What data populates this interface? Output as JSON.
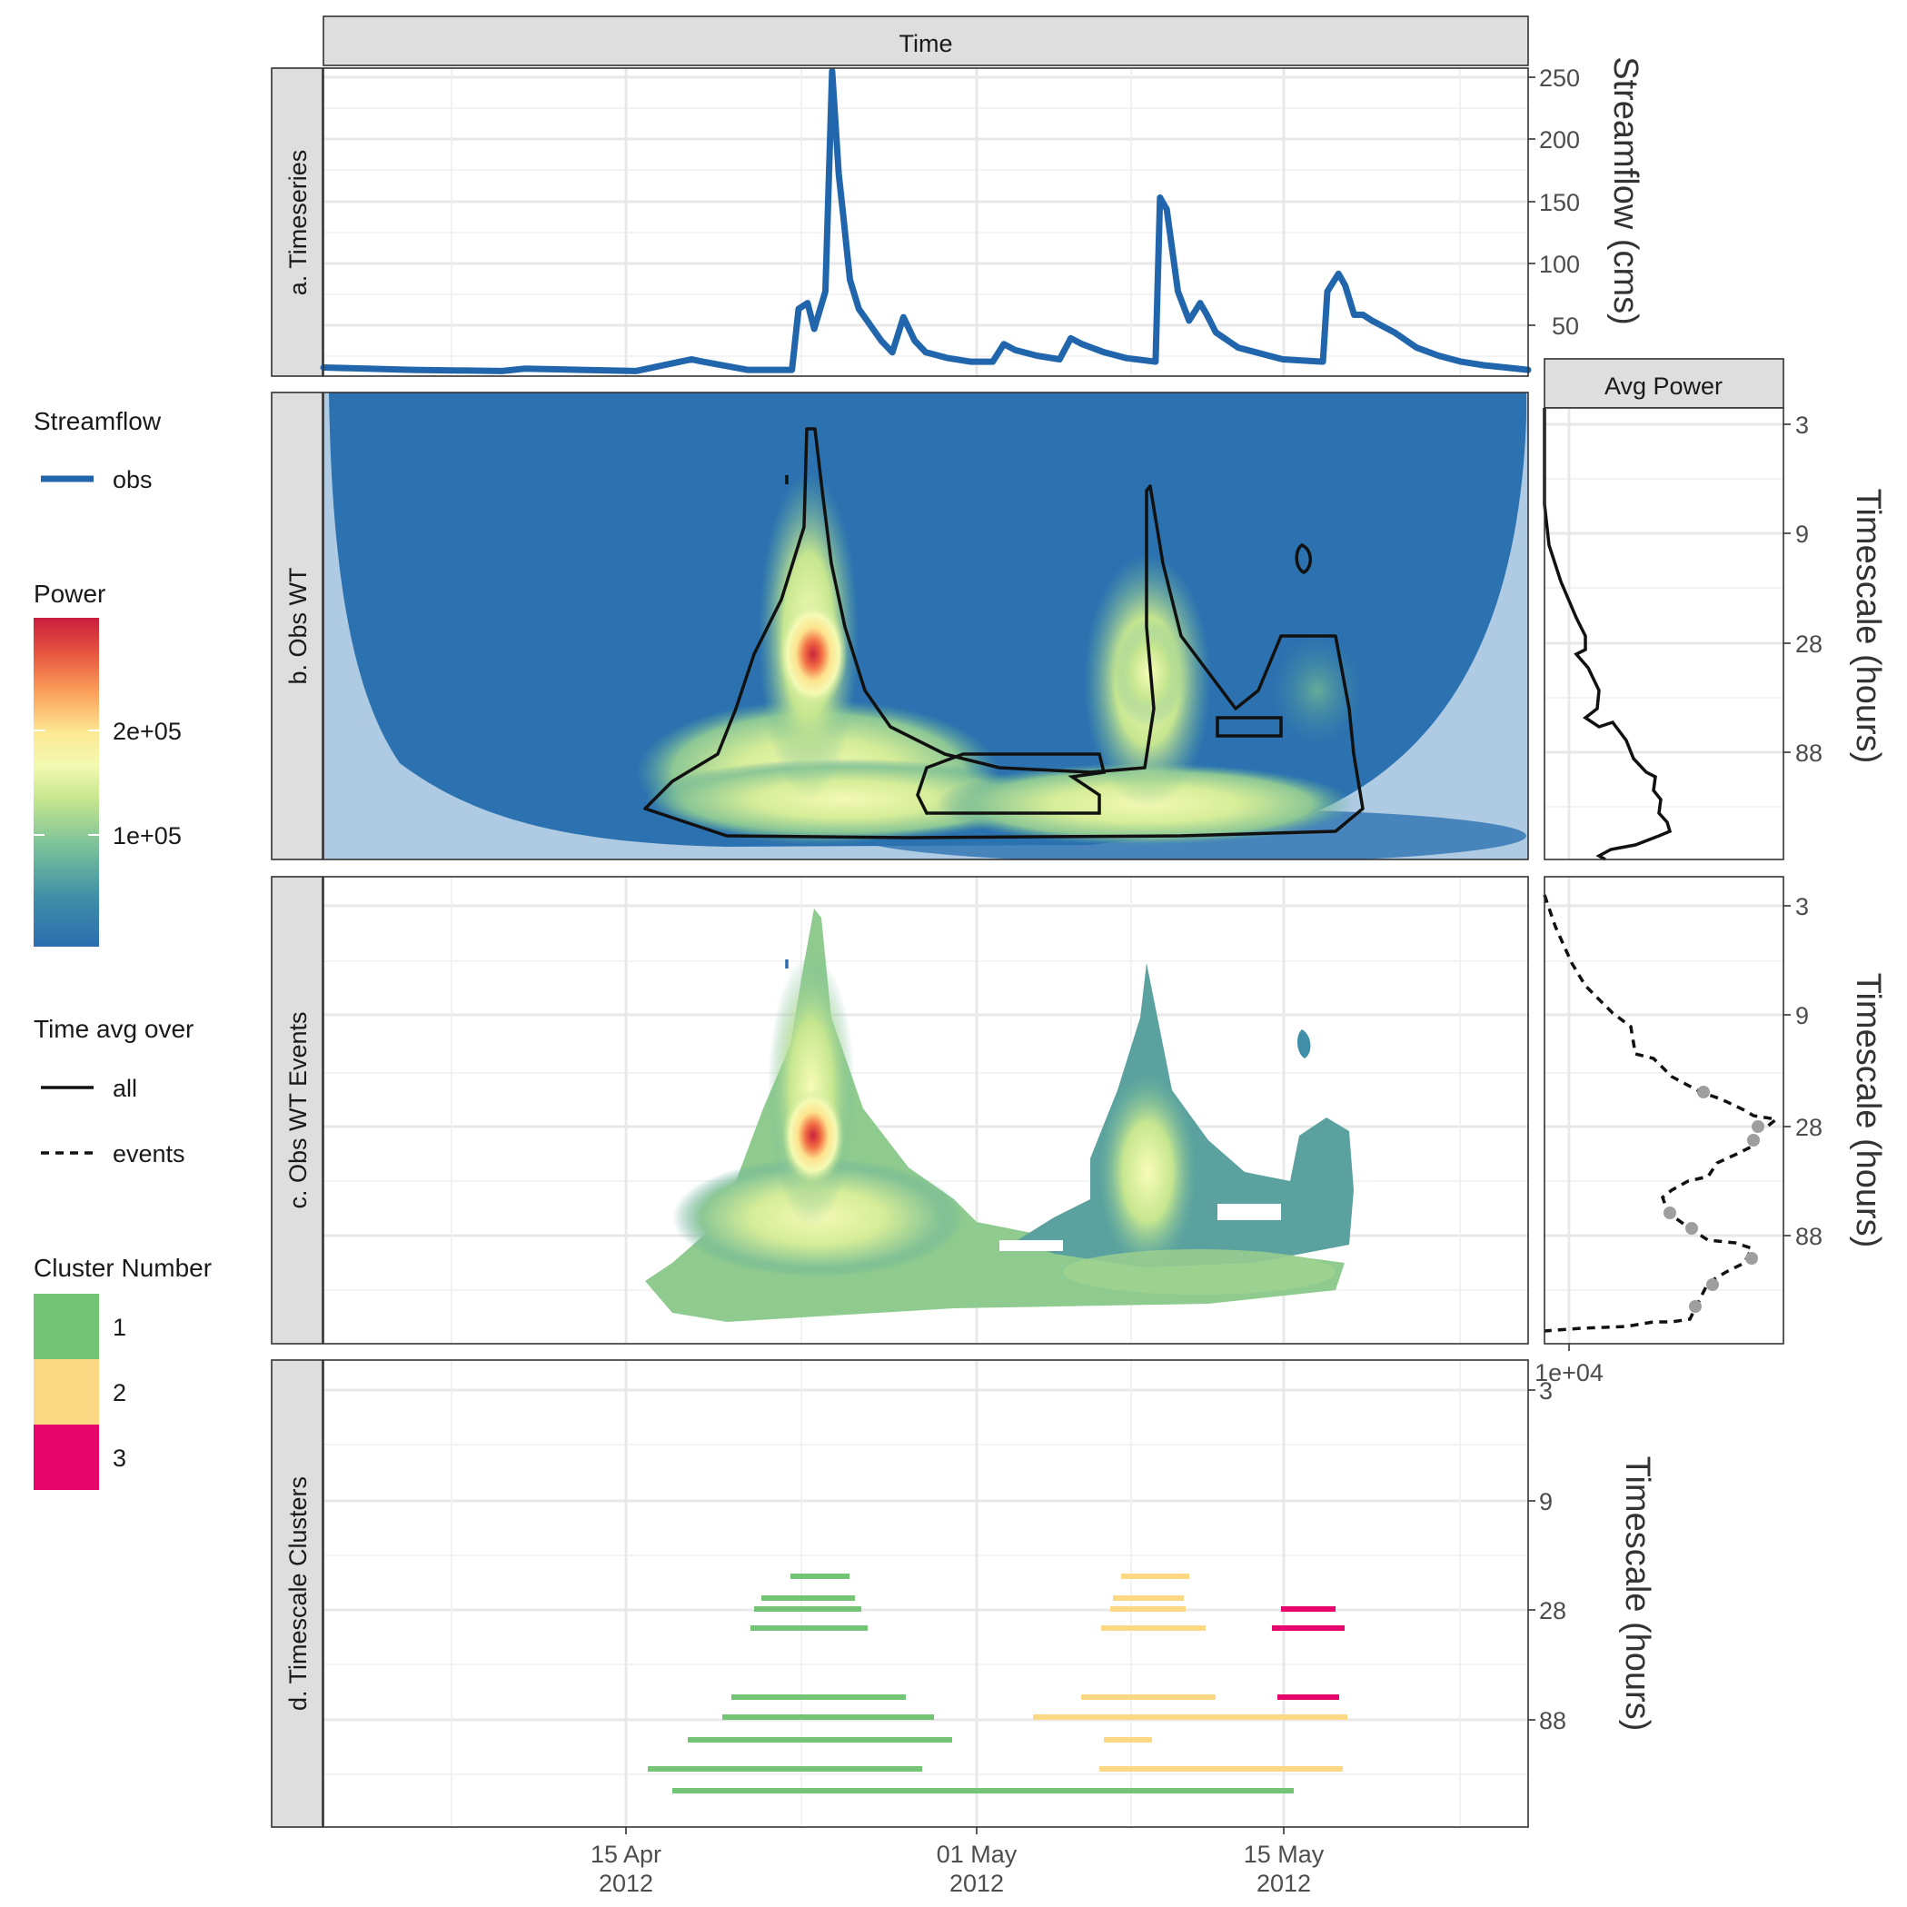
{
  "chart_data": [
    {
      "type": "line",
      "panel": "a.  Timeseries",
      "facet_label": "Time",
      "ylabel": "Streamflow (cms)",
      "y_ticks": [
        50,
        100,
        150,
        200,
        250
      ],
      "ylim": [
        0,
        255
      ],
      "x_ticks": [
        "15 Apr\n2012",
        "01 May\n2012",
        "15 May\n2012"
      ],
      "x_range_days": [
        1,
        55
      ],
      "series": [
        {
          "name": "obs",
          "color": "#2166ac",
          "x": [
            1,
            5,
            9,
            10,
            15,
            17,
            17.5,
            18,
            20,
            22,
            22.3,
            22.7,
            23,
            23.5,
            23.8,
            24.1,
            24.3,
            24.6,
            25,
            26,
            26.5,
            27,
            27.5,
            28,
            29,
            30,
            31,
            31.5,
            32,
            33,
            34,
            34.5,
            35,
            36,
            37,
            38.3,
            38.5,
            38.8,
            39.3,
            39.8,
            40.3,
            40.6,
            41,
            42,
            44,
            45.8,
            46,
            46.5,
            46.8,
            47.2,
            47.6,
            48,
            49,
            50,
            51,
            52,
            53,
            54,
            55
          ],
          "y": [
            5,
            3,
            2,
            4,
            2,
            10,
            12,
            10,
            3,
            3,
            55,
            60,
            38,
            70,
            258,
            170,
            135,
            80,
            55,
            28,
            18,
            48,
            28,
            18,
            13,
            10,
            10,
            25,
            20,
            15,
            12,
            30,
            25,
            18,
            13,
            10,
            150,
            140,
            70,
            45,
            60,
            50,
            35,
            22,
            12,
            10,
            70,
            85,
            75,
            50,
            50,
            45,
            35,
            22,
            15,
            10,
            7,
            5,
            3
          ]
        }
      ]
    },
    {
      "type": "heatmap",
      "panel": "b.  Obs WT",
      "ylabel": "Timescale (hours)",
      "y_ticks": [
        3,
        9,
        28,
        88
      ],
      "legend_title": "Power",
      "legend_ticks": [
        "2e+05",
        "1e+05"
      ],
      "hotspots": [
        {
          "time_day": 23.4,
          "timescale_h": 28,
          "power": 290000
        },
        {
          "time_day": 38.8,
          "timescale_h": 28,
          "power": 160000
        },
        {
          "time_day": 23,
          "timescale_h": 110,
          "power": 150000
        }
      ]
    },
    {
      "type": "line",
      "panel": "Avg Power",
      "facet_label": "Avg Power",
      "x_ticks": [
        "1e+04"
      ],
      "series": [
        {
          "name": "all",
          "style": "solid"
        },
        {
          "name": "events",
          "style": "dashed"
        }
      ]
    },
    {
      "type": "heatmap",
      "panel": "c. Obs WT Events",
      "ylabel": "Timescale (hours)",
      "y_ticks": [
        3,
        9,
        28,
        88
      ]
    },
    {
      "type": "bar",
      "panel": "d. Timescale Clusters",
      "ylabel": "Timescale (hours)",
      "y_ticks": [
        3,
        9,
        28,
        88
      ],
      "legend_title": "Cluster Number",
      "clusters": [
        {
          "name": "1",
          "color": "#74c476"
        },
        {
          "name": "2",
          "color": "#fdd884"
        },
        {
          "name": "3",
          "color": "#e7046b"
        }
      ]
    }
  ],
  "legends": {
    "streamflow": {
      "title": "Streamflow",
      "items": [
        "obs"
      ]
    },
    "power": {
      "title": "Power",
      "ticks": [
        "2e+05",
        "1e+05"
      ]
    },
    "time_avg": {
      "title": "Time avg over",
      "items": [
        "all",
        "events"
      ]
    },
    "cluster": {
      "title": "Cluster Number",
      "items": [
        "1",
        "2",
        "3"
      ]
    }
  },
  "strips": {
    "a": "a.  Timeseries",
    "b": "b.  Obs WT",
    "c": "c. Obs WT Events",
    "d": "d. Timescale Clusters",
    "top": "Time",
    "avg": "Avg Power"
  },
  "axes": {
    "streamflow": "Streamflow (cms)",
    "timescale": "Timescale (hours)",
    "date_ticks": [
      {
        "top": "15 Apr",
        "bottom": "2012"
      },
      {
        "top": "01 May",
        "bottom": "2012"
      },
      {
        "top": "15 May",
        "bottom": "2012"
      }
    ],
    "flow_ticks": [
      "250",
      "200",
      "150",
      "100",
      "50"
    ],
    "timescale_ticks": [
      "3",
      "9",
      "28",
      "88"
    ],
    "power_tick": "1e+04"
  }
}
